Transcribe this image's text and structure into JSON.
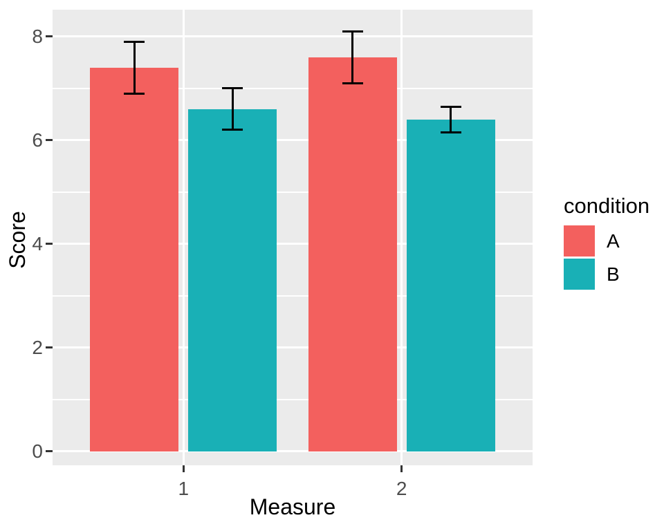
{
  "chart_data": {
    "type": "bar",
    "title": "",
    "xlabel": "Measure",
    "ylabel": "Score",
    "categories": [
      "1",
      "2"
    ],
    "series": [
      {
        "name": "A",
        "color": "#F3605E",
        "values": [
          7.4,
          7.6
        ],
        "error_low": [
          6.9,
          7.1
        ],
        "error_high": [
          7.9,
          8.1
        ]
      },
      {
        "name": "B",
        "color": "#19B0B6",
        "values": [
          6.6,
          6.4
        ],
        "error_low": [
          6.2,
          6.15
        ],
        "error_high": [
          7.0,
          6.65
        ]
      }
    ],
    "ylim": [
      -0.27,
      8.52
    ],
    "yticks": [
      0,
      2,
      4,
      6,
      8
    ],
    "yticks_minor": [
      1,
      3,
      5,
      7
    ],
    "grid": true,
    "error_bars": true,
    "legend": {
      "title": "condition",
      "position": "right",
      "entries": [
        "A",
        "B"
      ]
    }
  },
  "theme": {
    "background": "#FFFFFF",
    "panel_bg": "#EBEBEB",
    "grid_color": "#FFFFFF",
    "tick_label_color": "#4D4D4D",
    "tick_mark_color": "#333333",
    "axis_title_color": "#000000",
    "errorbar_color": "#000000"
  }
}
